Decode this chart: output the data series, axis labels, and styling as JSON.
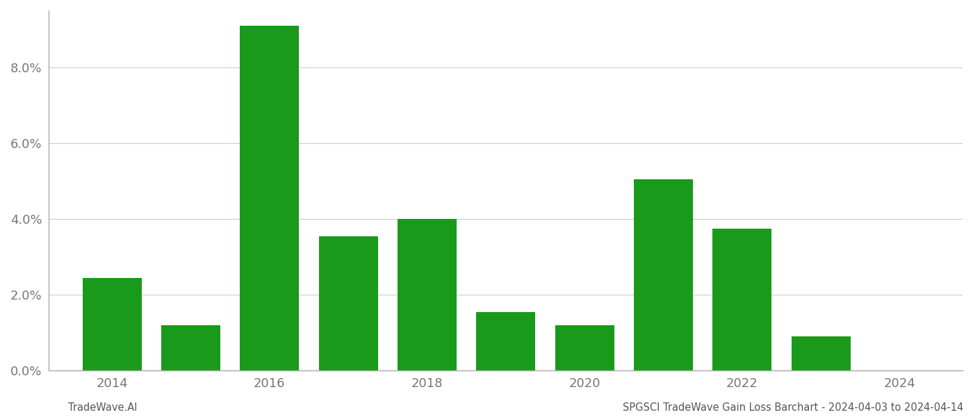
{
  "years": [
    2014,
    2015,
    2016,
    2017,
    2018,
    2019,
    2020,
    2021,
    2022,
    2023
  ],
  "values": [
    0.0245,
    0.012,
    0.091,
    0.0355,
    0.04,
    0.0155,
    0.012,
    0.0505,
    0.0375,
    0.009
  ],
  "bar_color": "#1a9a1a",
  "background_color": "#ffffff",
  "grid_color": "#cccccc",
  "ylim": [
    0,
    0.095
  ],
  "yticks": [
    0.0,
    0.02,
    0.04,
    0.06,
    0.08
  ],
  "xticks": [
    2014,
    2016,
    2018,
    2020,
    2022,
    2024
  ],
  "xlim_left": 2013.2,
  "xlim_right": 2024.8,
  "footer_left": "TradeWave.AI",
  "footer_right": "SPGSCI TradeWave Gain Loss Barchart - 2024-04-03 to 2024-04-14",
  "bar_width": 0.75,
  "tick_fontsize": 13,
  "footer_fontsize": 10.5,
  "spine_color": "#aaaaaa",
  "tick_color": "#777777"
}
